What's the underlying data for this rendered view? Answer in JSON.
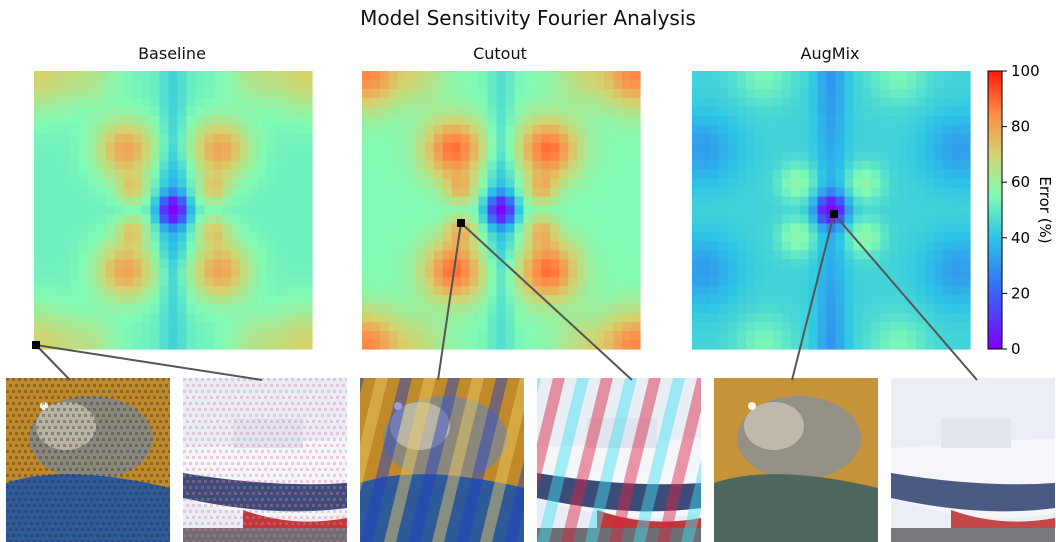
{
  "title": "Model Sensitivity Fourier Analysis",
  "colors": {
    "colormap": "rainbow",
    "marker": "#000000",
    "connector": "#555555"
  },
  "chart_data": {
    "type": "heatmap",
    "title": "Model Sensitivity Fourier Analysis",
    "grid": false,
    "panels": [
      {
        "title": "Baseline",
        "pattern": "baseline",
        "highlighted_frequency": "corner (low row, left)"
      },
      {
        "title": "Cutout",
        "pattern": "cutout",
        "highlighted_frequency": "mid frequency near center"
      },
      {
        "title": "AugMix",
        "pattern": "augmix",
        "highlighted_frequency": "center (lowest frequency)"
      }
    ],
    "colorbar": {
      "label": "Error (%)",
      "range": [
        0,
        100
      ],
      "ticks": [
        "0",
        "20",
        "40",
        "60",
        "80",
        "100"
      ]
    },
    "example_images": [
      {
        "panel": "Baseline",
        "subject": "cat",
        "perturbation": "checkerboard"
      },
      {
        "panel": "Baseline",
        "subject": "ship",
        "perturbation": "checkerboard"
      },
      {
        "panel": "Cutout",
        "subject": "cat",
        "perturbation": "stripes"
      },
      {
        "panel": "Cutout",
        "subject": "ship",
        "perturbation": "stripes"
      },
      {
        "panel": "AugMix",
        "subject": "cat",
        "perturbation": "none"
      },
      {
        "panel": "AugMix",
        "subject": "ship",
        "perturbation": "none"
      }
    ]
  }
}
